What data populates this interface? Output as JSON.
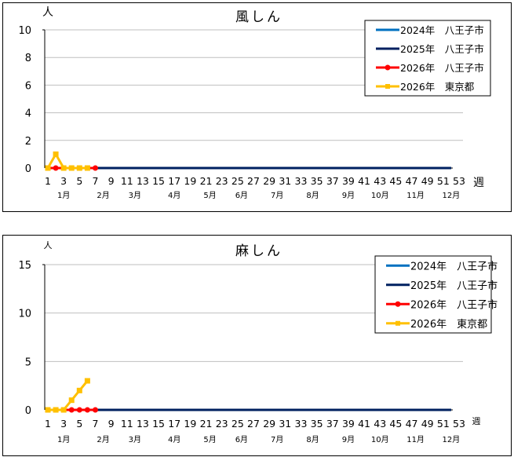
{
  "colors": {
    "s2024": "#0070C0",
    "s2025": "#002060",
    "s2026hachioji": "#FF0000",
    "s2026tokyo": "#FFC000",
    "grid": "#BFBFBF"
  },
  "chart_data": [
    {
      "type": "line",
      "title": "風しん",
      "ylabel": "人",
      "xlabel": "週",
      "ylim": [
        0,
        10
      ],
      "yticks": [
        0,
        2,
        4,
        6,
        8,
        10
      ],
      "xticks": [
        1,
        3,
        5,
        7,
        9,
        11,
        13,
        15,
        17,
        19,
        21,
        23,
        25,
        27,
        29,
        31,
        33,
        35,
        37,
        39,
        41,
        43,
        45,
        47,
        49,
        51,
        53
      ],
      "month_labels": [
        {
          "label": "1月",
          "week": 3
        },
        {
          "label": "2月",
          "week": 8
        },
        {
          "label": "3月",
          "week": 12
        },
        {
          "label": "4月",
          "week": 17
        },
        {
          "label": "5月",
          "week": 21.5
        },
        {
          "label": "6月",
          "week": 25.5
        },
        {
          "label": "7月",
          "week": 30
        },
        {
          "label": "8月",
          "week": 34.5
        },
        {
          "label": "9月",
          "week": 39
        },
        {
          "label": "10月",
          "week": 43
        },
        {
          "label": "11月",
          "week": 47.5
        },
        {
          "label": "12月",
          "week": 52
        }
      ],
      "grid": true,
      "legend_position": "top-right",
      "series": [
        {
          "name": "2024年　八王子市",
          "color": "#0070C0",
          "marker": "none",
          "x_range": [
            1,
            52
          ],
          "values": "all 0"
        },
        {
          "name": "2025年　八王子市",
          "color": "#002060",
          "marker": "none",
          "x_range": [
            1,
            52
          ],
          "values": "all 0"
        },
        {
          "name": "2026年　八王子市",
          "color": "#FF0000",
          "marker": "circle",
          "x": [
            1,
            2,
            3,
            4,
            5,
            6,
            7
          ],
          "values": [
            0,
            0,
            0,
            0,
            0,
            0,
            0
          ]
        },
        {
          "name": "2026年　東京都",
          "color": "#FFC000",
          "marker": "square",
          "x": [
            1,
            2,
            3,
            4,
            5,
            6
          ],
          "values": [
            0,
            1,
            0,
            0,
            0,
            0
          ]
        }
      ]
    },
    {
      "type": "line",
      "title": "麻しん",
      "ylabel": "人",
      "xlabel": "週",
      "ylim": [
        0,
        15
      ],
      "yticks": [
        0,
        5,
        10,
        15
      ],
      "xticks": [
        1,
        3,
        5,
        7,
        9,
        11,
        13,
        15,
        17,
        19,
        21,
        23,
        25,
        27,
        29,
        31,
        33,
        35,
        37,
        39,
        41,
        43,
        45,
        47,
        49,
        51,
        53
      ],
      "month_labels": [
        {
          "label": "1月",
          "week": 3
        },
        {
          "label": "2月",
          "week": 8
        },
        {
          "label": "3月",
          "week": 12
        },
        {
          "label": "4月",
          "week": 17
        },
        {
          "label": "5月",
          "week": 21.5
        },
        {
          "label": "6月",
          "week": 25.5
        },
        {
          "label": "7月",
          "week": 30
        },
        {
          "label": "8月",
          "week": 34.5
        },
        {
          "label": "9月",
          "week": 39
        },
        {
          "label": "10月",
          "week": 43
        },
        {
          "label": "11月",
          "week": 47.5
        },
        {
          "label": "12月",
          "week": 52
        }
      ],
      "grid": true,
      "legend_position": "top-right",
      "series": [
        {
          "name": "2024年　八王子市",
          "color": "#0070C0",
          "marker": "none",
          "x_range": [
            1,
            52
          ],
          "values": "all 0"
        },
        {
          "name": "2025年　八王子市",
          "color": "#002060",
          "marker": "none",
          "x_range": [
            1,
            52
          ],
          "values": "all 0"
        },
        {
          "name": "2026年　八王子市",
          "color": "#FF0000",
          "marker": "circle",
          "x": [
            1,
            2,
            3,
            4,
            5,
            6,
            7
          ],
          "values": [
            0,
            0,
            0,
            0,
            0,
            0,
            0
          ]
        },
        {
          "name": "2026年　東京都",
          "color": "#FFC000",
          "marker": "square",
          "x": [
            1,
            2,
            3,
            4,
            5,
            6
          ],
          "values": [
            0,
            0,
            0,
            1,
            2,
            3
          ]
        }
      ]
    }
  ]
}
